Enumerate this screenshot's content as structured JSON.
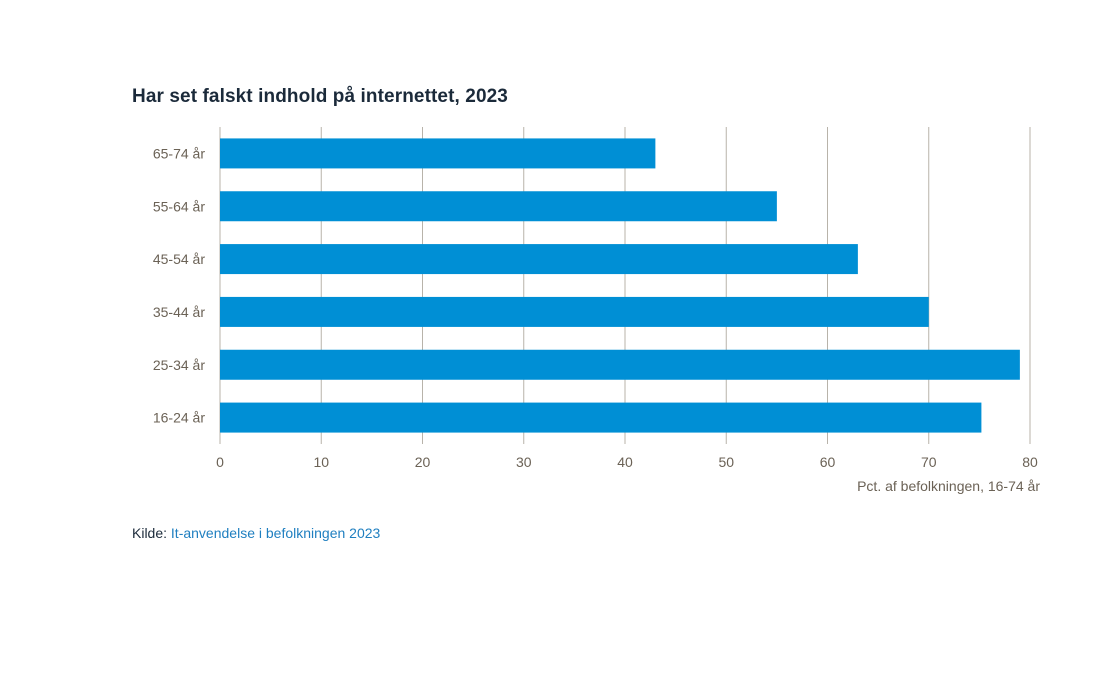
{
  "chart_data": {
    "type": "bar",
    "orientation": "horizontal",
    "title": "Har set falskt indhold på internettet, 2023",
    "categories": [
      "65-74 år",
      "55-64 år",
      "45-54 år",
      "35-44 år",
      "25-34 år",
      "16-24 år"
    ],
    "values": [
      43,
      55,
      63,
      70,
      79,
      75.2
    ],
    "xlabel": "Pct. af befolkningen, 16-74 år",
    "ylabel": "",
    "xlim": [
      0,
      80
    ],
    "xticks": [
      0,
      10,
      20,
      30,
      40,
      50,
      60,
      70,
      80
    ],
    "grid": true,
    "bar_color": "#008fd5"
  },
  "source": {
    "label": "Kilde:",
    "link_text": "It-anvendelse i befolkningen 2023"
  }
}
